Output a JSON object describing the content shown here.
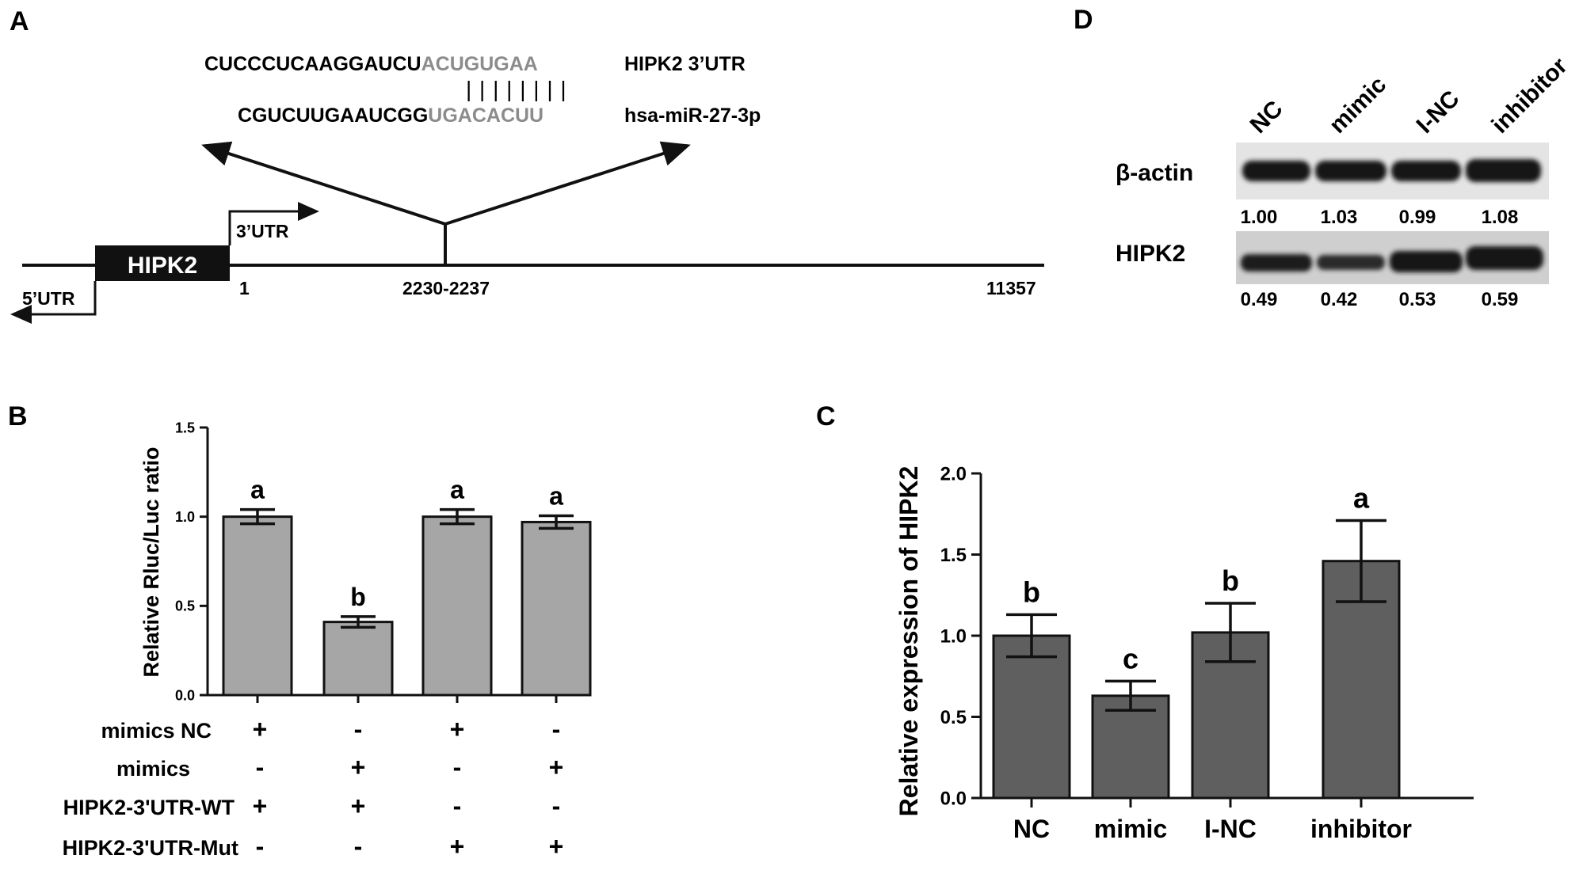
{
  "panels": {
    "a": {
      "label": "A",
      "seq_top_black": "CUCCCUCAAGGAUCU",
      "seq_top_grey": "ACUGUGAA",
      "seq_top_name": "HIPK2 3’UTR",
      "pairing": "| | | | | | | |",
      "seq_bottom_black": "CGUCUUGAAUCGG",
      "seq_bottom_grey": "UGACACUU",
      "seq_bottom_name": "hsa-miR-27-3p",
      "gene": "HIPK2",
      "utr3": "3’UTR",
      "utr5": "5’UTR",
      "pos_start": "1",
      "pos_site": "2230-2237",
      "pos_end": "11357"
    },
    "b": {
      "label": "B",
      "row_labels": [
        "mimics NC",
        "mimics",
        "HIPK2-3'UTR-WT",
        "HIPK2-3'UTR-Mut"
      ],
      "signs": [
        [
          "+",
          "-",
          "+",
          "-"
        ],
        [
          "-",
          "+",
          "-",
          "+"
        ],
        [
          "+",
          "+",
          "-",
          "-"
        ],
        [
          "-",
          "-",
          "+",
          "+"
        ]
      ]
    },
    "c": {
      "label": "C"
    },
    "d": {
      "label": "D",
      "lanes": [
        "NC",
        "mimic",
        "I-NC",
        "inhibitor"
      ],
      "band1_name": "β-actin",
      "band1_values": [
        "1.00",
        "1.03",
        "0.99",
        "1.08"
      ],
      "band2_name": "HIPK2",
      "band2_values": [
        "0.49",
        "0.42",
        "0.53",
        "0.59"
      ]
    }
  },
  "chart_data": [
    {
      "panel": "B",
      "type": "bar",
      "categories": [
        "",
        "",
        "",
        ""
      ],
      "values": [
        1.0,
        0.41,
        1.0,
        0.97
      ],
      "errors": [
        0.04,
        0.03,
        0.04,
        0.035
      ],
      "sig_labels": [
        "a",
        "b",
        "a",
        "a"
      ],
      "title": "",
      "xlabel": "",
      "ylabel": "Relative Rluc/Luc ratio",
      "ylim": [
        0,
        1.5
      ],
      "yticks": [
        "0.0",
        "0.5",
        "1.0",
        "1.5"
      ],
      "bar_color": "#a6a6a6"
    },
    {
      "panel": "C",
      "type": "bar",
      "categories": [
        "NC",
        "mimic",
        "I-NC",
        "inhibitor"
      ],
      "values": [
        1.0,
        0.63,
        1.02,
        1.46
      ],
      "errors": [
        0.13,
        0.09,
        0.18,
        0.25
      ],
      "sig_labels": [
        "b",
        "c",
        "b",
        "a"
      ],
      "title": "",
      "xlabel": "",
      "ylabel": "Relative expression of HIPK2",
      "ylim": [
        0,
        2.0
      ],
      "yticks": [
        "0.0",
        "0.5",
        "1.0",
        "1.5",
        "2.0"
      ],
      "bar_color": "#5f5f5f"
    }
  ]
}
